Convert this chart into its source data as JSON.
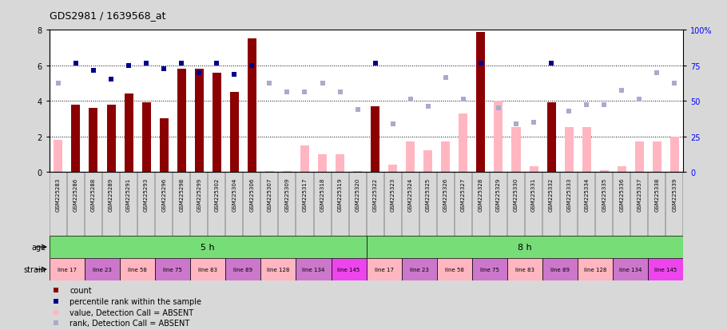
{
  "title": "GDS2981 / 1639568_at",
  "samples": [
    "GSM225283",
    "GSM225286",
    "GSM225288",
    "GSM225289",
    "GSM225291",
    "GSM225293",
    "GSM225296",
    "GSM225298",
    "GSM225299",
    "GSM225302",
    "GSM225304",
    "GSM225306",
    "GSM225307",
    "GSM225309",
    "GSM225317",
    "GSM225318",
    "GSM225319",
    "GSM225320",
    "GSM225322",
    "GSM225323",
    "GSM225324",
    "GSM225325",
    "GSM225326",
    "GSM225327",
    "GSM225328",
    "GSM225329",
    "GSM225330",
    "GSM225331",
    "GSM225332",
    "GSM225333",
    "GSM225334",
    "GSM225335",
    "GSM225336",
    "GSM225337",
    "GSM225338",
    "GSM225339"
  ],
  "count_values": [
    1.8,
    3.8,
    3.6,
    3.8,
    4.4,
    3.9,
    3.0,
    5.8,
    5.8,
    5.6,
    4.5,
    7.5,
    0.05,
    0.05,
    1.5,
    1.0,
    1.0,
    0.05,
    3.7,
    0.4,
    1.7,
    1.2,
    1.7,
    3.3,
    7.9,
    4.0,
    2.5,
    0.3,
    3.9,
    2.5,
    2.5,
    0.1,
    0.3,
    1.7,
    1.7,
    2.0
  ],
  "count_present": [
    false,
    true,
    true,
    true,
    true,
    true,
    true,
    true,
    true,
    true,
    true,
    true,
    false,
    false,
    false,
    false,
    false,
    false,
    true,
    false,
    false,
    false,
    false,
    false,
    true,
    false,
    false,
    false,
    true,
    false,
    false,
    false,
    false,
    false,
    false,
    false
  ],
  "percentile_present": [
    false,
    true,
    true,
    true,
    true,
    true,
    true,
    true,
    true,
    true,
    true,
    true,
    false,
    false,
    false,
    false,
    false,
    false,
    true,
    false,
    false,
    false,
    false,
    false,
    true,
    false,
    false,
    false,
    true,
    false,
    false,
    false,
    false,
    false,
    false,
    false
  ],
  "percentile_values": [
    5.0,
    6.1,
    5.7,
    5.2,
    6.0,
    6.1,
    5.8,
    6.1,
    5.6,
    6.1,
    5.5,
    6.0,
    5.0,
    4.5,
    4.5,
    5.0,
    4.5,
    3.5,
    6.1,
    2.7,
    4.1,
    3.7,
    5.3,
    4.1,
    6.1,
    3.6,
    2.7,
    2.8,
    6.1,
    3.4,
    3.8,
    3.8,
    4.6,
    4.1,
    5.6,
    5.0
  ],
  "ylim_left": [
    0,
    8
  ],
  "ylim_right": [
    0,
    100
  ],
  "yticks_left": [
    0,
    2,
    4,
    6,
    8
  ],
  "yticks_right": [
    0,
    25,
    50,
    75,
    100
  ],
  "dark_red": "#8B0000",
  "pink": "#FFB6C1",
  "dark_blue": "#00008B",
  "light_blue": "#AAAACC",
  "bg_color": "#D8D8D8",
  "plot_bg": "#FFFFFF",
  "age_color": "#77DD77",
  "strain_pink": "#FFB6C1",
  "strain_violet": "#CC77CC",
  "strain_bright": "#EE44EE",
  "strain_groups": [
    {
      "label": "line 17",
      "start": 0,
      "end": 2,
      "alt": false
    },
    {
      "label": "line 23",
      "start": 2,
      "end": 4,
      "alt": true
    },
    {
      "label": "line 58",
      "start": 4,
      "end": 6,
      "alt": false
    },
    {
      "label": "line 75",
      "start": 6,
      "end": 8,
      "alt": true
    },
    {
      "label": "line 83",
      "start": 8,
      "end": 10,
      "alt": false
    },
    {
      "label": "line 89",
      "start": 10,
      "end": 12,
      "alt": true
    },
    {
      "label": "line 128",
      "start": 12,
      "end": 14,
      "alt": false
    },
    {
      "label": "line 134",
      "start": 14,
      "end": 16,
      "alt": true
    },
    {
      "label": "line 145",
      "start": 16,
      "end": 18,
      "alt": true
    },
    {
      "label": "line 17",
      "start": 18,
      "end": 20,
      "alt": false
    },
    {
      "label": "line 23",
      "start": 20,
      "end": 22,
      "alt": true
    },
    {
      "label": "line 58",
      "start": 22,
      "end": 24,
      "alt": false
    },
    {
      "label": "line 75",
      "start": 24,
      "end": 26,
      "alt": true
    },
    {
      "label": "line 83",
      "start": 26,
      "end": 28,
      "alt": false
    },
    {
      "label": "line 89",
      "start": 28,
      "end": 30,
      "alt": true
    },
    {
      "label": "line 128",
      "start": 30,
      "end": 32,
      "alt": false
    },
    {
      "label": "line 134",
      "start": 32,
      "end": 34,
      "alt": true
    },
    {
      "label": "line 145",
      "start": 34,
      "end": 36,
      "alt": true
    }
  ]
}
